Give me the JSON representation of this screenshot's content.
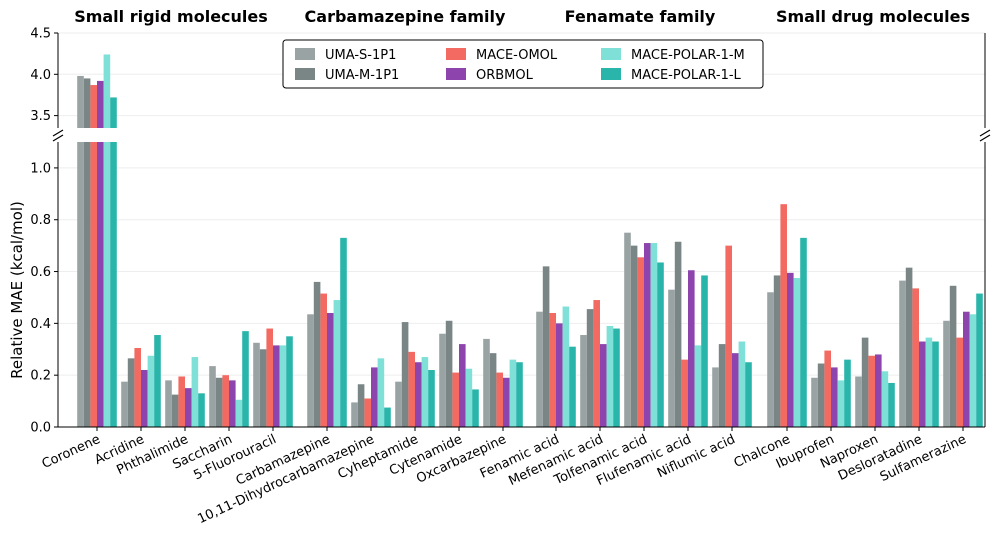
{
  "chart_data": {
    "type": "bar",
    "ylabel": "Relative MAE (kcal/mol)",
    "xlabel": "",
    "ylim_lower": [
      0,
      1.1
    ],
    "ylim_upper": [
      3.35,
      4.5
    ],
    "lower_ticks": [
      "0.0",
      "0.2",
      "0.4",
      "0.6",
      "0.8",
      "1.0"
    ],
    "upper_ticks": [
      "3.5",
      "4.0",
      "4.5"
    ],
    "lower_tick_values": [
      0,
      0.2,
      0.4,
      0.6,
      0.8,
      1.0
    ],
    "upper_tick_values": [
      3.5,
      4.0,
      4.5
    ],
    "groups": [
      {
        "title": "Small rigid molecules",
        "categories": [
          "Coronene",
          "Acridine",
          "Phthalimide",
          "Saccharin",
          "5-Fluorouracil"
        ]
      },
      {
        "title": "Carbamazepine family",
        "categories": [
          "Carbamazepine",
          "10,11-Dihydrocarbamazepine",
          "Cyheptamide",
          "Cytenamide",
          "Oxcarbazepine"
        ]
      },
      {
        "title": "Fenamate family",
        "categories": [
          "Fenamic acid",
          "Mefenamic acid",
          "Tolfenamic acid",
          "Flufenamic acid",
          "Niflumic acid"
        ]
      },
      {
        "title": "Small drug molecules",
        "categories": [
          "Chalcone",
          "Ibuprofen",
          "Naproxen",
          "Desloratadine",
          "Sulfamerazine"
        ]
      }
    ],
    "series": [
      {
        "name": "UMA-S-1P1",
        "color": "#9aa3a3",
        "values": [
          3.98,
          0.175,
          0.18,
          0.235,
          0.325,
          0.435,
          0.095,
          0.175,
          0.36,
          0.34,
          0.445,
          0.355,
          0.75,
          0.53,
          0.23,
          0.52,
          0.19,
          0.195,
          0.565,
          0.41
        ]
      },
      {
        "name": "UMA-M-1P1",
        "color": "#7a8585",
        "values": [
          3.95,
          0.265,
          0.125,
          0.19,
          0.3,
          0.56,
          0.165,
          0.405,
          0.41,
          0.285,
          0.62,
          0.455,
          0.7,
          0.715,
          0.32,
          0.585,
          0.245,
          0.345,
          0.615,
          0.545
        ]
      },
      {
        "name": "MACE-OMOL",
        "color": "#f26a62",
        "values": [
          3.87,
          0.305,
          0.195,
          0.2,
          0.38,
          0.515,
          0.11,
          0.29,
          0.21,
          0.21,
          0.44,
          0.49,
          0.655,
          0.26,
          0.7,
          0.86,
          0.295,
          0.275,
          0.535,
          0.345
        ]
      },
      {
        "name": "ORBMOL",
        "color": "#8e44ad",
        "values": [
          3.92,
          0.22,
          0.15,
          0.18,
          0.315,
          0.44,
          0.23,
          0.25,
          0.32,
          0.19,
          0.4,
          0.32,
          0.71,
          0.605,
          0.285,
          0.595,
          0.23,
          0.28,
          0.33,
          0.445
        ]
      },
      {
        "name": "MACE-POLAR-1-M",
        "color": "#7fe0d8",
        "values": [
          4.24,
          0.275,
          0.27,
          0.105,
          0.315,
          0.49,
          0.265,
          0.27,
          0.225,
          0.26,
          0.465,
          0.39,
          0.71,
          0.315,
          0.33,
          0.575,
          0.18,
          0.215,
          0.345,
          0.435
        ]
      },
      {
        "name": "MACE-POLAR-1-L",
        "color": "#2ab5ab",
        "values": [
          3.72,
          0.355,
          0.13,
          0.37,
          0.35,
          0.73,
          0.075,
          0.22,
          0.145,
          0.25,
          0.31,
          0.38,
          0.635,
          0.585,
          0.25,
          0.73,
          0.26,
          0.17,
          0.33,
          0.515
        ]
      }
    ]
  }
}
